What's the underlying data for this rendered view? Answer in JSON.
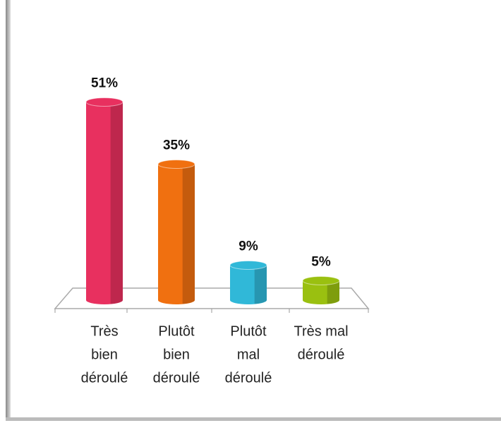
{
  "chart_data": {
    "type": "bar3d",
    "categories": [
      [
        "Très",
        "bien",
        "déroulé"
      ],
      [
        "Plutôt",
        "bien",
        "déroulé"
      ],
      [
        "Plutôt",
        "mal",
        "déroulé"
      ],
      [
        "Très mal",
        "déroulé"
      ]
    ],
    "values": [
      51,
      35,
      9,
      5
    ],
    "value_labels": [
      "51%",
      "35%",
      "9%",
      "5%"
    ],
    "colors": [
      "#e8305f",
      "#f07010",
      "#30b8d8",
      "#9ac010"
    ]
  }
}
